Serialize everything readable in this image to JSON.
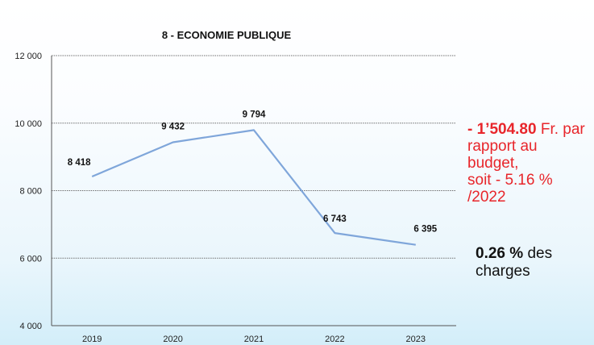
{
  "chart_data": {
    "type": "line",
    "title": "8 - ECONOMIE PUBLIQUE",
    "categories": [
      "2019",
      "2020",
      "2021",
      "2022",
      "2023"
    ],
    "series": [
      {
        "values": [
          8418,
          9432,
          9794,
          6743,
          6395
        ]
      }
    ],
    "data_labels": [
      "8 418",
      "9 432",
      "9 794",
      "6 743",
      "6 395"
    ],
    "ylim": [
      4000,
      12000
    ],
    "y_ticks": [
      4000,
      6000,
      8000,
      10000,
      12000
    ],
    "y_tick_labels": [
      "4 000",
      "6 000",
      "8 000",
      "10 000",
      "12 000"
    ],
    "grid": true,
    "line_color": "#7fa6da"
  },
  "annotation": {
    "variance_value": "- 1’504.80",
    "variance_text": "Fr. par rapport au budget,",
    "variance_pct": "soit  - 5.16 % /2022",
    "share_value": "0.26 %",
    "share_text": "des charges"
  },
  "colors": {
    "highlight": "#e8262b",
    "text": "#111111",
    "gridline": "#6e6e6e"
  }
}
